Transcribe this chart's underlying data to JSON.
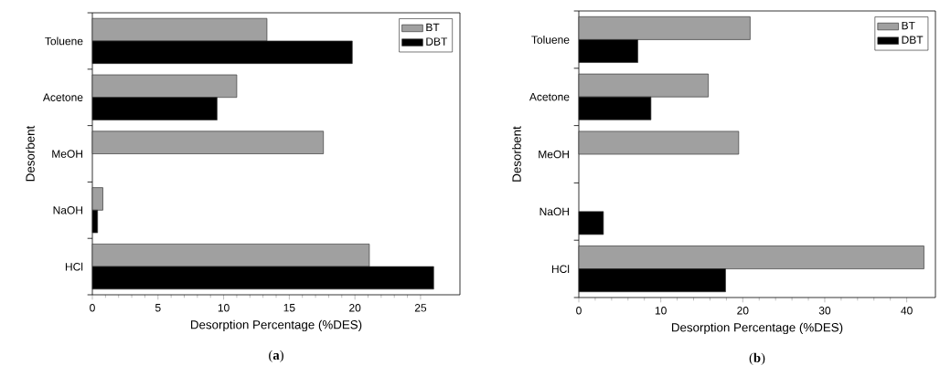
{
  "chart_data": [
    {
      "type": "bar",
      "orientation": "horizontal",
      "categories": [
        "Toluene",
        "Acetone",
        "MeOH",
        "NaOH",
        "HCl"
      ],
      "series": [
        {
          "name": "BT",
          "color": "#a0a0a0",
          "values": [
            13.3,
            11.0,
            17.6,
            0.8,
            21.1
          ]
        },
        {
          "name": "DBT",
          "color": "#000000",
          "values": [
            19.8,
            9.5,
            null,
            0.4,
            26.0
          ]
        }
      ],
      "xlim": [
        0,
        28
      ],
      "xticks": [
        0,
        5,
        10,
        15,
        20,
        25
      ],
      "xlabel": "Desorption Percentage (%DES)",
      "ylabel": "Desorbent",
      "legend": "top right",
      "annotations": [
        "(**a**)"
      ]
    },
    {
      "type": "bar",
      "orientation": "horizontal",
      "categories": [
        "Toluene",
        "Acetone",
        "MeOH",
        "NaOH",
        "HCl"
      ],
      "series": [
        {
          "name": "BT",
          "color": "#a0a0a0",
          "values": [
            20.9,
            15.8,
            19.5,
            null,
            42.1
          ]
        },
        {
          "name": "DBT",
          "color": "#000000",
          "values": [
            7.2,
            8.8,
            null,
            3.0,
            17.9
          ]
        }
      ],
      "xlim": [
        0,
        43.5
      ],
      "xticks": [
        0,
        10,
        20,
        30,
        40
      ],
      "xlabel": "Desorption Percentage (%DES)",
      "ylabel": "Desorbent",
      "legend": "top right",
      "annotations": [
        "(**b**)"
      ]
    }
  ]
}
